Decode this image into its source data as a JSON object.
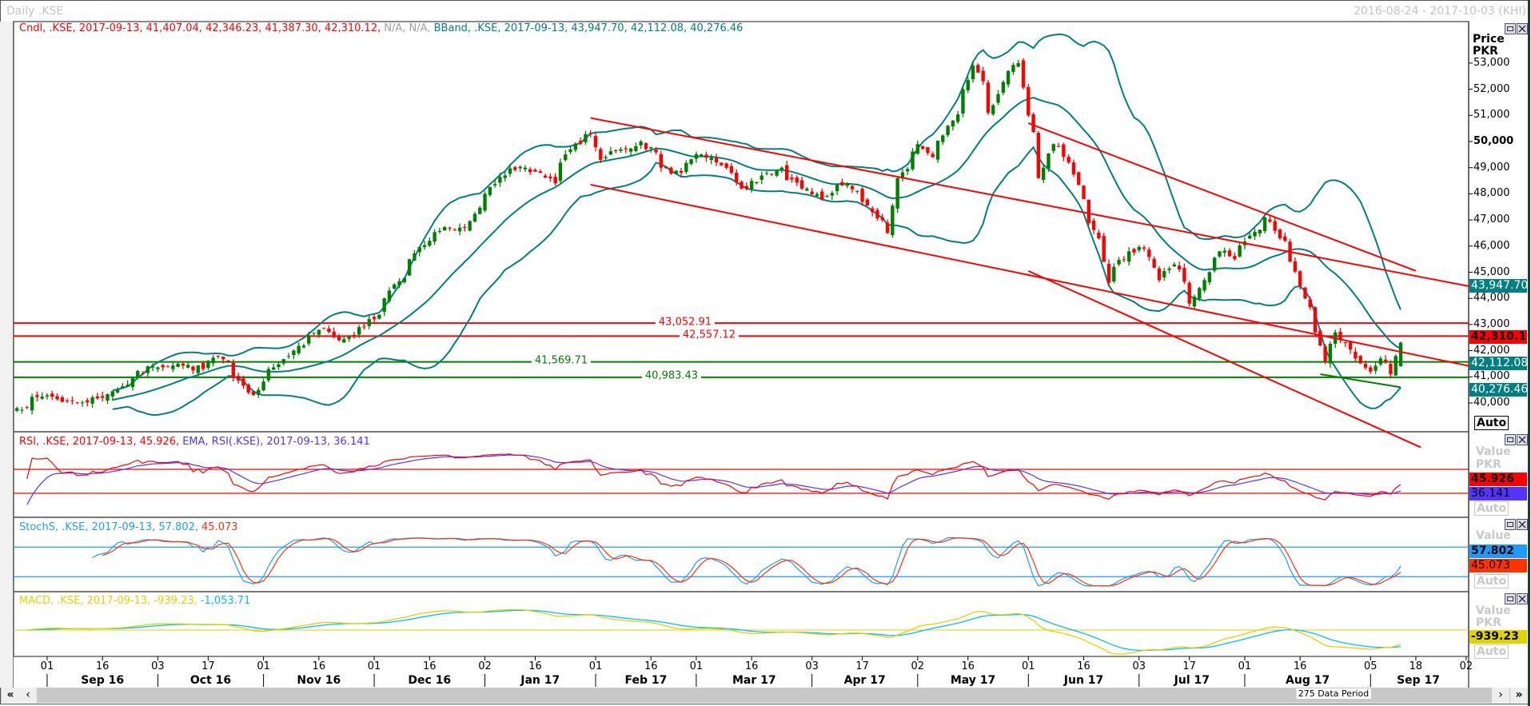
{
  "window": {
    "title": "Daily .KSE",
    "date_range": "2016-08-24 - 2017-10-03 (KHI)"
  },
  "main_legend": {
    "candle": "Cndl, .KSE, 2017-09-13, 41,407.04, 42,346.23, 41,387.30, 42,310.12,",
    "na": "N/A, N/A,",
    "bband": "BBand, .KSE, 2017-09-13, 43,947.70, 42,112.08, 40,276.46"
  },
  "rsi_legend": {
    "rsi": "RSI, .KSE, 2017-09-13, 45.926,",
    "ema": "EMA, RSI(.KSE), 2017-09-13, 36.141"
  },
  "stoch_legend": {
    "k": "StochS, .KSE, 2017-09-13, 57.802,",
    "d": "45.073"
  },
  "macd_legend": {
    "macd": "MACD, .KSE, 2017-09-13, -939.23,",
    "signal": "-1,053.71"
  },
  "price_axis": {
    "title": "Price",
    "unit": "PKR",
    "auto": "Auto",
    "ticks": [
      "53,000",
      "52,000",
      "51,000",
      "50,000",
      "49,000",
      "48,000",
      "47,000",
      "46,000",
      "45,000",
      "44,000",
      "43,000",
      "42,000",
      "41,000",
      "40,000"
    ],
    "bold_tick": "50,000",
    "badges": [
      {
        "value": "43,947.70",
        "color": "#008080"
      },
      {
        "value": "42,310.12",
        "color": "#ff0000"
      },
      {
        "value": "42,112.08",
        "color": "#008080"
      },
      {
        "value": "40,276.46",
        "color": "#008080"
      }
    ]
  },
  "rsi_axis": {
    "title": "Value",
    "unit": "PKR",
    "auto": "Auto",
    "rsi_value": "45.926",
    "ema_value": "36.141"
  },
  "stoch_axis": {
    "title": "Value",
    "auto": "Auto",
    "k_value": "57.802",
    "d_value": "45.073"
  },
  "macd_axis": {
    "title": "Value",
    "unit": "PKR",
    "auto": "Auto",
    "macd_value": "-939.23"
  },
  "levels": [
    {
      "value": 43052.91,
      "label": "43,052.91",
      "color": "#ff0000"
    },
    {
      "value": 42557.12,
      "label": "42,557.12",
      "color": "#ff0000"
    },
    {
      "value": 41569.71,
      "label": "41,569.71",
      "color": "#008000"
    },
    {
      "value": 40983.43,
      "label": "40,983.43",
      "color": "#008000"
    }
  ],
  "date_axis": {
    "ticks": [
      {
        "label": "01",
        "date": "2016-09-01"
      },
      {
        "label": "16",
        "date": "2016-09-16"
      },
      {
        "label": "03",
        "date": "2016-10-03"
      },
      {
        "label": "17",
        "date": "2016-10-17"
      },
      {
        "label": "01",
        "date": "2016-11-01"
      },
      {
        "label": "16",
        "date": "2016-11-16"
      },
      {
        "label": "01",
        "date": "2016-12-01"
      },
      {
        "label": "16",
        "date": "2016-12-16"
      },
      {
        "label": "02",
        "date": "2017-01-02"
      },
      {
        "label": "16",
        "date": "2017-01-16"
      },
      {
        "label": "01",
        "date": "2017-02-01"
      },
      {
        "label": "16",
        "date": "2017-02-16"
      },
      {
        "label": "01",
        "date": "2017-03-01"
      },
      {
        "label": "16",
        "date": "2017-03-16"
      },
      {
        "label": "03",
        "date": "2017-04-03"
      },
      {
        "label": "17",
        "date": "2017-04-17"
      },
      {
        "label": "02",
        "date": "2017-05-02"
      },
      {
        "label": "16",
        "date": "2017-05-16"
      },
      {
        "label": "01",
        "date": "2017-06-01"
      },
      {
        "label": "16",
        "date": "2017-06-16"
      },
      {
        "label": "03",
        "date": "2017-07-03"
      },
      {
        "label": "17",
        "date": "2017-07-17"
      },
      {
        "label": "01",
        "date": "2017-08-01"
      },
      {
        "label": "16",
        "date": "2017-08-16"
      },
      {
        "label": "05",
        "date": "2017-09-05"
      },
      {
        "label": "18",
        "date": "2017-09-18"
      },
      {
        "label": "02",
        "date": "2017-10-02"
      }
    ],
    "months": [
      {
        "label": "Sep 16",
        "start": "2016-09-01",
        "end": "2016-10-03"
      },
      {
        "label": "Oct 16",
        "start": "2016-10-03",
        "end": "2016-11-01"
      },
      {
        "label": "Nov 16",
        "start": "2016-11-01",
        "end": "2016-12-01"
      },
      {
        "label": "Dec 16",
        "start": "2016-12-01",
        "end": "2017-01-02"
      },
      {
        "label": "Jan 17",
        "start": "2017-01-02",
        "end": "2017-02-01"
      },
      {
        "label": "Feb 17",
        "start": "2017-02-01",
        "end": "2017-03-01"
      },
      {
        "label": "Mar 17",
        "start": "2017-03-01",
        "end": "2017-04-03"
      },
      {
        "label": "Apr 17",
        "start": "2017-04-03",
        "end": "2017-05-02"
      },
      {
        "label": "May 17",
        "start": "2017-05-02",
        "end": "2017-06-01"
      },
      {
        "label": "Jun 17",
        "start": "2017-06-01",
        "end": "2017-07-03"
      },
      {
        "label": "Jul 17",
        "start": "2017-07-03",
        "end": "2017-08-01"
      },
      {
        "label": "Aug 17",
        "start": "2017-08-01",
        "end": "2017-09-05"
      },
      {
        "label": "Sep 17",
        "start": "2017-09-05",
        "end": "2017-10-02"
      }
    ]
  },
  "scrollbar": {
    "period_label": "275 Data Period",
    "first": "«",
    "prev": "‹",
    "next": "›",
    "last": "»"
  },
  "colors": {
    "up": "#008000",
    "down": "#ff0000",
    "bband": "#008080",
    "rsi": "#ff0000",
    "rsi_ema": "#5533ff",
    "stoch_k": "#1e9bff",
    "stoch_d": "#ff3300",
    "macd": "#e0d400",
    "macd_signal": "#00bfff"
  },
  "chart_data": {
    "type": "candlestick",
    "title": "Daily .KSE",
    "start_date": "2016-08-24",
    "end_date": "2017-09-13",
    "data_points": 275,
    "ylabel": "Price PKR",
    "ylim": [
      39000,
      54000
    ],
    "last_ohlc": {
      "date": "2017-09-13",
      "open": 41407.04,
      "high": 42346.23,
      "low": 41387.3,
      "close": 42310.12
    },
    "close_anchors": [
      [
        "2016-08-24",
        39800
      ],
      [
        "2016-09-01",
        40300
      ],
      [
        "2016-09-09",
        40000
      ],
      [
        "2016-09-16",
        40200
      ],
      [
        "2016-09-23",
        40700
      ],
      [
        "2016-09-30",
        41400
      ],
      [
        "2016-10-07",
        41500
      ],
      [
        "2016-10-14",
        41300
      ],
      [
        "2016-10-19",
        41800
      ],
      [
        "2016-10-27",
        40400
      ],
      [
        "2016-10-31",
        40500
      ],
      [
        "2016-11-02",
        41300
      ],
      [
        "2016-11-09",
        42000
      ],
      [
        "2016-11-16",
        42800
      ],
      [
        "2016-11-22",
        42400
      ],
      [
        "2016-11-28",
        42900
      ],
      [
        "2016-12-01",
        43200
      ],
      [
        "2016-12-06",
        44300
      ],
      [
        "2016-12-12",
        45500
      ],
      [
        "2016-12-16",
        46200
      ],
      [
        "2016-12-22",
        46700
      ],
      [
        "2016-12-27",
        46700
      ],
      [
        "2017-01-02",
        48000
      ],
      [
        "2017-01-06",
        48700
      ],
      [
        "2017-01-12",
        49000
      ],
      [
        "2017-01-17",
        48800
      ],
      [
        "2017-01-20",
        48400
      ],
      [
        "2017-01-25",
        49700
      ],
      [
        "2017-01-31",
        50300
      ],
      [
        "2017-02-02",
        49300
      ],
      [
        "2017-02-08",
        49700
      ],
      [
        "2017-02-14",
        50000
      ],
      [
        "2017-02-20",
        49000
      ],
      [
        "2017-02-24",
        48800
      ],
      [
        "2017-03-02",
        49500
      ],
      [
        "2017-03-07",
        49200
      ],
      [
        "2017-03-14",
        48200
      ],
      [
        "2017-03-20",
        48700
      ],
      [
        "2017-03-24",
        49000
      ],
      [
        "2017-03-30",
        48200
      ],
      [
        "2017-04-05",
        47800
      ],
      [
        "2017-04-12",
        48400
      ],
      [
        "2017-04-19",
        47300
      ],
      [
        "2017-04-24",
        46500
      ],
      [
        "2017-04-26",
        48600
      ],
      [
        "2017-05-02",
        49900
      ],
      [
        "2017-05-05",
        49400
      ],
      [
        "2017-05-10",
        50600
      ],
      [
        "2017-05-15",
        52000
      ],
      [
        "2017-05-17",
        52900
      ],
      [
        "2017-05-22",
        51100
      ],
      [
        "2017-05-26",
        52700
      ],
      [
        "2017-05-30",
        53000
      ],
      [
        "2017-06-01",
        51000
      ],
      [
        "2017-06-05",
        48600
      ],
      [
        "2017-06-08",
        49900
      ],
      [
        "2017-06-13",
        49200
      ],
      [
        "2017-06-16",
        47800
      ],
      [
        "2017-06-21",
        46300
      ],
      [
        "2017-06-23",
        44600
      ],
      [
        "2017-06-29",
        45800
      ],
      [
        "2017-07-04",
        45900
      ],
      [
        "2017-07-07",
        44700
      ],
      [
        "2017-07-12",
        45300
      ],
      [
        "2017-07-17",
        43800
      ],
      [
        "2017-07-20",
        44700
      ],
      [
        "2017-07-25",
        45800
      ],
      [
        "2017-07-28",
        45500
      ],
      [
        "2017-08-02",
        46400
      ],
      [
        "2017-08-07",
        47100
      ],
      [
        "2017-08-10",
        46300
      ],
      [
        "2017-08-14",
        45400
      ],
      [
        "2017-08-17",
        44000
      ],
      [
        "2017-08-21",
        42700
      ],
      [
        "2017-08-23",
        41600
      ],
      [
        "2017-08-25",
        42700
      ],
      [
        "2017-08-29",
        42300
      ],
      [
        "2017-08-31",
        41700
      ],
      [
        "2017-09-05",
        41200
      ],
      [
        "2017-09-07",
        41700
      ],
      [
        "2017-09-11",
        41100
      ],
      [
        "2017-09-13",
        42310.12
      ]
    ],
    "bollinger": {
      "period": 20,
      "stddev": 2,
      "last": [
        43947.7,
        42112.08,
        40276.46
      ]
    },
    "trendlines": [
      {
        "name": "upper-channel",
        "from": [
          "2017-01-31",
          50900
        ],
        "to": [
          "2017-10-03",
          44450
        ],
        "color": "#ff0000"
      },
      {
        "name": "lower-channel",
        "from": [
          "2017-01-31",
          48350
        ],
        "to": [
          "2017-10-03",
          41400
        ],
        "color": "#ff0000"
      },
      {
        "name": "down-trend",
        "from": [
          "2017-06-01",
          50700
        ],
        "to": [
          "2017-09-18",
          45050
        ],
        "color": "#ff0000"
      },
      {
        "name": "wedge-lower",
        "from": [
          "2017-06-01",
          45050
        ],
        "to": [
          "2017-09-19",
          38300
        ],
        "color": "#ff0000"
      },
      {
        "name": "support",
        "from": [
          "2017-08-22",
          41100
        ],
        "to": [
          "2017-09-13",
          40600
        ],
        "color": "#008000"
      }
    ],
    "rsi": {
      "period": 14,
      "ema_period": 9,
      "levels": [
        70,
        30
      ],
      "last": 45.926,
      "ema_last": 36.141
    },
    "stoch": {
      "levels": [
        80,
        20
      ],
      "k_last": 57.802,
      "d_last": 45.073
    },
    "macd": {
      "fast": 12,
      "slow": 26,
      "signal": 9,
      "last": -939.23,
      "signal_last": -1053.71
    }
  }
}
